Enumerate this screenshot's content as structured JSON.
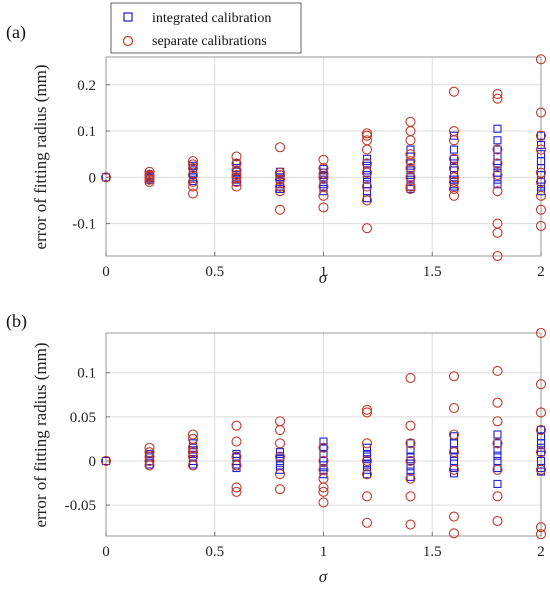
{
  "colors": {
    "integrated": "#1f1fd0",
    "separate": "#c0392b",
    "grid": "#dcdcdc"
  },
  "legend": {
    "integrated": "integrated calibration",
    "separate": "separate calibrations",
    "integrated_marker": "square",
    "separate_marker": "circle"
  },
  "chart_data": [
    {
      "type": "scatter",
      "panel_label": "(a)",
      "xlabel": "σ",
      "ylabel": "error of fitting radius (mm)",
      "xlim": [
        0,
        2
      ],
      "ylim": [
        -0.17,
        0.26
      ],
      "grid": true,
      "xticks": [
        0,
        0.5,
        1,
        1.5,
        2
      ],
      "xtick_labels": [
        "0",
        "0.5",
        "1",
        "1.5",
        "2"
      ],
      "yticks": [
        -0.1,
        0,
        0.1,
        0.2
      ],
      "ytick_labels": [
        "-0.1",
        "0",
        "0.1",
        "0.2"
      ],
      "series": [
        {
          "name": "integrated calibration",
          "marker": "square",
          "x": [
            0,
            0.2,
            0.2,
            0.2,
            0.2,
            0.2,
            0.2,
            0.4,
            0.4,
            0.4,
            0.4,
            0.4,
            0.4,
            0.4,
            0.6,
            0.6,
            0.6,
            0.6,
            0.6,
            0.6,
            0.6,
            0.8,
            0.8,
            0.8,
            0.8,
            0.8,
            0.8,
            0.8,
            1,
            1,
            1,
            1,
            1,
            1,
            1,
            1.2,
            1.2,
            1.2,
            1.2,
            1.2,
            1.2,
            1.2,
            1.2,
            1.2,
            1.4,
            1.4,
            1.4,
            1.4,
            1.4,
            1.4,
            1.4,
            1.4,
            1.4,
            1.6,
            1.6,
            1.6,
            1.6,
            1.6,
            1.6,
            1.6,
            1.6,
            1.6,
            1.8,
            1.8,
            1.8,
            1.8,
            1.8,
            1.8,
            1.8,
            1.8,
            1.8,
            2,
            2,
            2,
            2,
            2,
            2,
            2,
            2,
            2
          ],
          "y": [
            0,
            0.006,
            0.003,
            0,
            -0.002,
            -0.005,
            0.002,
            0.02,
            0.015,
            0.01,
            0.005,
            0,
            -0.008,
            0.025,
            0.02,
            0.012,
            0.005,
            0,
            -0.005,
            -0.01,
            0.03,
            0.012,
            0.006,
            0,
            -0.006,
            -0.015,
            -0.02,
            -0.025,
            0.018,
            0.01,
            0.005,
            0,
            -0.01,
            -0.02,
            -0.03,
            0.04,
            0.03,
            0.015,
            0.005,
            -0.005,
            -0.015,
            -0.03,
            -0.045,
            0.02,
            0.06,
            0.045,
            0.03,
            0.02,
            0.01,
            0,
            -0.01,
            -0.02,
            -0.025,
            0.09,
            0.06,
            0.04,
            0.02,
            0.005,
            -0.005,
            -0.015,
            -0.02,
            0.03,
            0.105,
            0.08,
            0.06,
            0.045,
            0.03,
            0.02,
            0.01,
            -0.005,
            -0.015,
            0.09,
            0.07,
            0.05,
            0.035,
            0.02,
            0.005,
            -0.01,
            -0.02,
            -0.03
          ]
        },
        {
          "name": "separate calibrations",
          "marker": "circle",
          "x": [
            0,
            0.2,
            0.2,
            0.2,
            0.2,
            0.2,
            0.2,
            0.4,
            0.4,
            0.4,
            0.4,
            0.4,
            0.4,
            0.4,
            0.6,
            0.6,
            0.6,
            0.6,
            0.6,
            0.6,
            0.6,
            0.8,
            0.8,
            0.8,
            0.8,
            0.8,
            0.8,
            0.8,
            1,
            1,
            1,
            1,
            1,
            1,
            1,
            1.2,
            1.2,
            1.2,
            1.2,
            1.2,
            1.2,
            1.2,
            1.2,
            1.2,
            1.4,
            1.4,
            1.4,
            1.4,
            1.4,
            1.4,
            1.4,
            1.4,
            1.4,
            1.6,
            1.6,
            1.6,
            1.6,
            1.6,
            1.6,
            1.6,
            1.6,
            1.6,
            1.8,
            1.8,
            1.8,
            1.8,
            1.8,
            1.8,
            1.8,
            1.8,
            1.8,
            2,
            2,
            2,
            2,
            2,
            2,
            2,
            2,
            2
          ],
          "y": [
            0,
            0.012,
            0.006,
            0,
            -0.005,
            -0.01,
            0.003,
            0.035,
            0.02,
            0.005,
            -0.01,
            -0.02,
            -0.035,
            0.028,
            0.045,
            0.03,
            0.015,
            0,
            -0.01,
            -0.02,
            0.005,
            0.065,
            0.01,
            -0.005,
            -0.02,
            -0.03,
            -0.07,
            0.005,
            0.038,
            0.02,
            0,
            -0.02,
            -0.04,
            -0.065,
            0.008,
            0.095,
            0.09,
            0.08,
            0.03,
            -0.02,
            -0.05,
            -0.11,
            0.01,
            0.06,
            0.12,
            0.1,
            0.05,
            0.02,
            0,
            -0.02,
            -0.025,
            0.08,
            0.035,
            0.185,
            0.08,
            0.04,
            0.02,
            -0.01,
            -0.025,
            -0.04,
            0.1,
            0.0,
            0.18,
            0.17,
            0.06,
            0.03,
            0.005,
            -0.03,
            -0.1,
            -0.12,
            -0.17,
            0.255,
            0.14,
            0.09,
            0.06,
            0.01,
            -0.01,
            -0.04,
            -0.07,
            -0.105
          ]
        }
      ]
    },
    {
      "type": "scatter",
      "panel_label": "(b)",
      "xlabel": "σ",
      "ylabel": "error of fitting radius (mm)",
      "xlim": [
        0,
        2
      ],
      "ylim": [
        -0.085,
        0.145
      ],
      "grid": true,
      "xticks": [
        0,
        0.5,
        1,
        1.5,
        2
      ],
      "xtick_labels": [
        "0",
        "0.5",
        "1",
        "1.5",
        "2"
      ],
      "yticks": [
        -0.05,
        0,
        0.05,
        0.1
      ],
      "ytick_labels": [
        "-0.05",
        "0",
        "0.05",
        "0.1"
      ],
      "series": [
        {
          "name": "integrated calibration",
          "marker": "square",
          "x": [
            0,
            0.2,
            0.2,
            0.2,
            0.2,
            0.2,
            0.4,
            0.4,
            0.4,
            0.4,
            0.4,
            0.4,
            0.6,
            0.6,
            0.6,
            0.6,
            0.6,
            0.6,
            0.8,
            0.8,
            0.8,
            0.8,
            0.8,
            0.8,
            1,
            1,
            1,
            1,
            1,
            1,
            1,
            1.2,
            1.2,
            1.2,
            1.2,
            1.2,
            1.2,
            1.2,
            1.4,
            1.4,
            1.4,
            1.4,
            1.4,
            1.4,
            1.4,
            1.6,
            1.6,
            1.6,
            1.6,
            1.6,
            1.6,
            1.6,
            1.8,
            1.8,
            1.8,
            1.8,
            1.8,
            1.8,
            1.8,
            2,
            2,
            2,
            2,
            2,
            2,
            2,
            2
          ],
          "y": [
            0,
            0.008,
            0.004,
            0,
            -0.004,
            0.006,
            0.015,
            0.01,
            0.005,
            0,
            -0.004,
            0.02,
            0.008,
            0.004,
            0,
            -0.004,
            -0.008,
            0.005,
            0.01,
            0.005,
            0,
            -0.005,
            -0.01,
            0.003,
            0.022,
            0.015,
            0.008,
            0,
            -0.005,
            -0.01,
            -0.015,
            0.015,
            0.008,
            0.002,
            -0.004,
            -0.01,
            -0.015,
            0.005,
            0.02,
            0.012,
            0.005,
            0,
            -0.006,
            -0.012,
            -0.018,
            0.028,
            0.02,
            0.012,
            0.005,
            0,
            -0.008,
            -0.014,
            0.02,
            0.012,
            0.006,
            0,
            -0.008,
            -0.026,
            0.03,
            0.035,
            0.028,
            0.02,
            0.015,
            0.01,
            0,
            -0.008,
            -0.012
          ]
        },
        {
          "name": "separate calibrations",
          "marker": "circle",
          "x": [
            0,
            0.2,
            0.2,
            0.2,
            0.2,
            0.2,
            0.4,
            0.4,
            0.4,
            0.4,
            0.4,
            0.4,
            0.6,
            0.6,
            0.6,
            0.6,
            0.6,
            0.6,
            0.8,
            0.8,
            0.8,
            0.8,
            0.8,
            0.8,
            1,
            1,
            1,
            1,
            1,
            1,
            1,
            1.2,
            1.2,
            1.2,
            1.2,
            1.2,
            1.2,
            1.2,
            1.4,
            1.4,
            1.4,
            1.4,
            1.4,
            1.4,
            1.4,
            1.6,
            1.6,
            1.6,
            1.6,
            1.6,
            1.6,
            1.6,
            1.8,
            1.8,
            1.8,
            1.8,
            1.8,
            1.8,
            1.8,
            2,
            2,
            2,
            2,
            2,
            2,
            2,
            2
          ],
          "y": [
            0,
            0.015,
            0.01,
            0.005,
            0,
            -0.005,
            0.03,
            0.025,
            0.015,
            0.005,
            -0.005,
            0.01,
            0.04,
            0.022,
            0.005,
            -0.005,
            -0.03,
            -0.035,
            0.045,
            0.035,
            0.02,
            0.005,
            -0.015,
            -0.032,
            0.015,
            0,
            -0.01,
            -0.02,
            -0.03,
            -0.035,
            -0.047,
            0.058,
            0.055,
            0.02,
            0,
            -0.015,
            -0.04,
            -0.07,
            0.094,
            0.04,
            0.02,
            0,
            -0.02,
            -0.04,
            -0.072,
            0.096,
            0.06,
            0.03,
            0.01,
            -0.01,
            -0.063,
            -0.082,
            0.102,
            0.066,
            0.045,
            0.02,
            -0.01,
            -0.04,
            -0.068,
            0.145,
            0.087,
            0.055,
            0.035,
            0.01,
            -0.01,
            -0.075,
            -0.083
          ]
        }
      ]
    }
  ]
}
